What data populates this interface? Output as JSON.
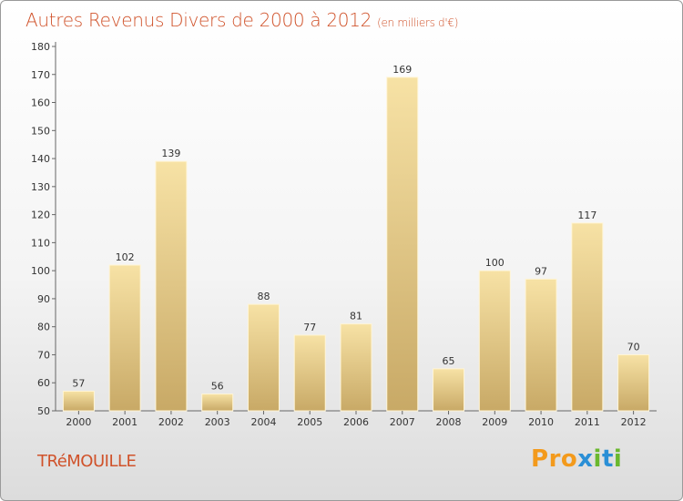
{
  "header": {
    "title": "Autres Revenus Divers de 2000 à 2012",
    "unit": "(en milliers d'€)"
  },
  "footer": {
    "commune": "TRéMOUILLE",
    "logo": [
      "P",
      "r",
      "o",
      "x",
      "i",
      "t",
      "i"
    ]
  },
  "colors": {
    "title": "#d0522a",
    "bar_light": "#f7e2a5",
    "bar_dark": "#c8a966",
    "logo": [
      "#f39a1c",
      "#f39a1c",
      "#f39a1c",
      "#2a8fd6",
      "#6ab82e",
      "#2a8fd6",
      "#6ab82e"
    ]
  },
  "chart_data": {
    "type": "bar",
    "categories": [
      "2000",
      "2001",
      "2002",
      "2003",
      "2004",
      "2005",
      "2006",
      "2007",
      "2008",
      "2009",
      "2010",
      "2011",
      "2012"
    ],
    "values": [
      57,
      102,
      139,
      56,
      88,
      77,
      81,
      169,
      65,
      100,
      97,
      117,
      70
    ],
    "title": "Autres Revenus Divers de 2000 à 2012",
    "ylim": [
      50,
      180
    ],
    "yticks": [
      50,
      60,
      70,
      80,
      90,
      100,
      110,
      120,
      130,
      140,
      150,
      160,
      170,
      180
    ],
    "grid": false,
    "data_labels": true
  }
}
